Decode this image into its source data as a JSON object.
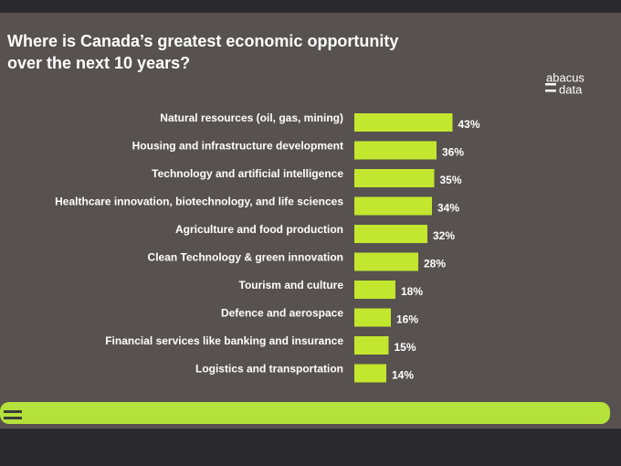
{
  "chart_data": {
    "type": "bar",
    "orientation": "horizontal",
    "title": "Where is Canada’s greatest economic opportunity over the next 10 years?",
    "categories": [
      "Natural resources (oil, gas, mining)",
      "Housing and infrastructure development",
      "Technology and artificial intelligence",
      "Healthcare innovation, biotechnology, and life sciences",
      "Agriculture and food production",
      "Clean Technology & green innovation",
      "Tourism and culture",
      "Defence and aerospace",
      "Financial services like banking and insurance",
      "Logistics and transportation"
    ],
    "values": [
      43,
      36,
      35,
      34,
      32,
      28,
      18,
      16,
      15,
      14
    ],
    "value_labels": [
      "43%",
      "36%",
      "35%",
      "34%",
      "32%",
      "28%",
      "18%",
      "16%",
      "15%",
      "14%"
    ],
    "color": "#c3e62e"
  },
  "logo": [
    "abacus",
    "data"
  ]
}
